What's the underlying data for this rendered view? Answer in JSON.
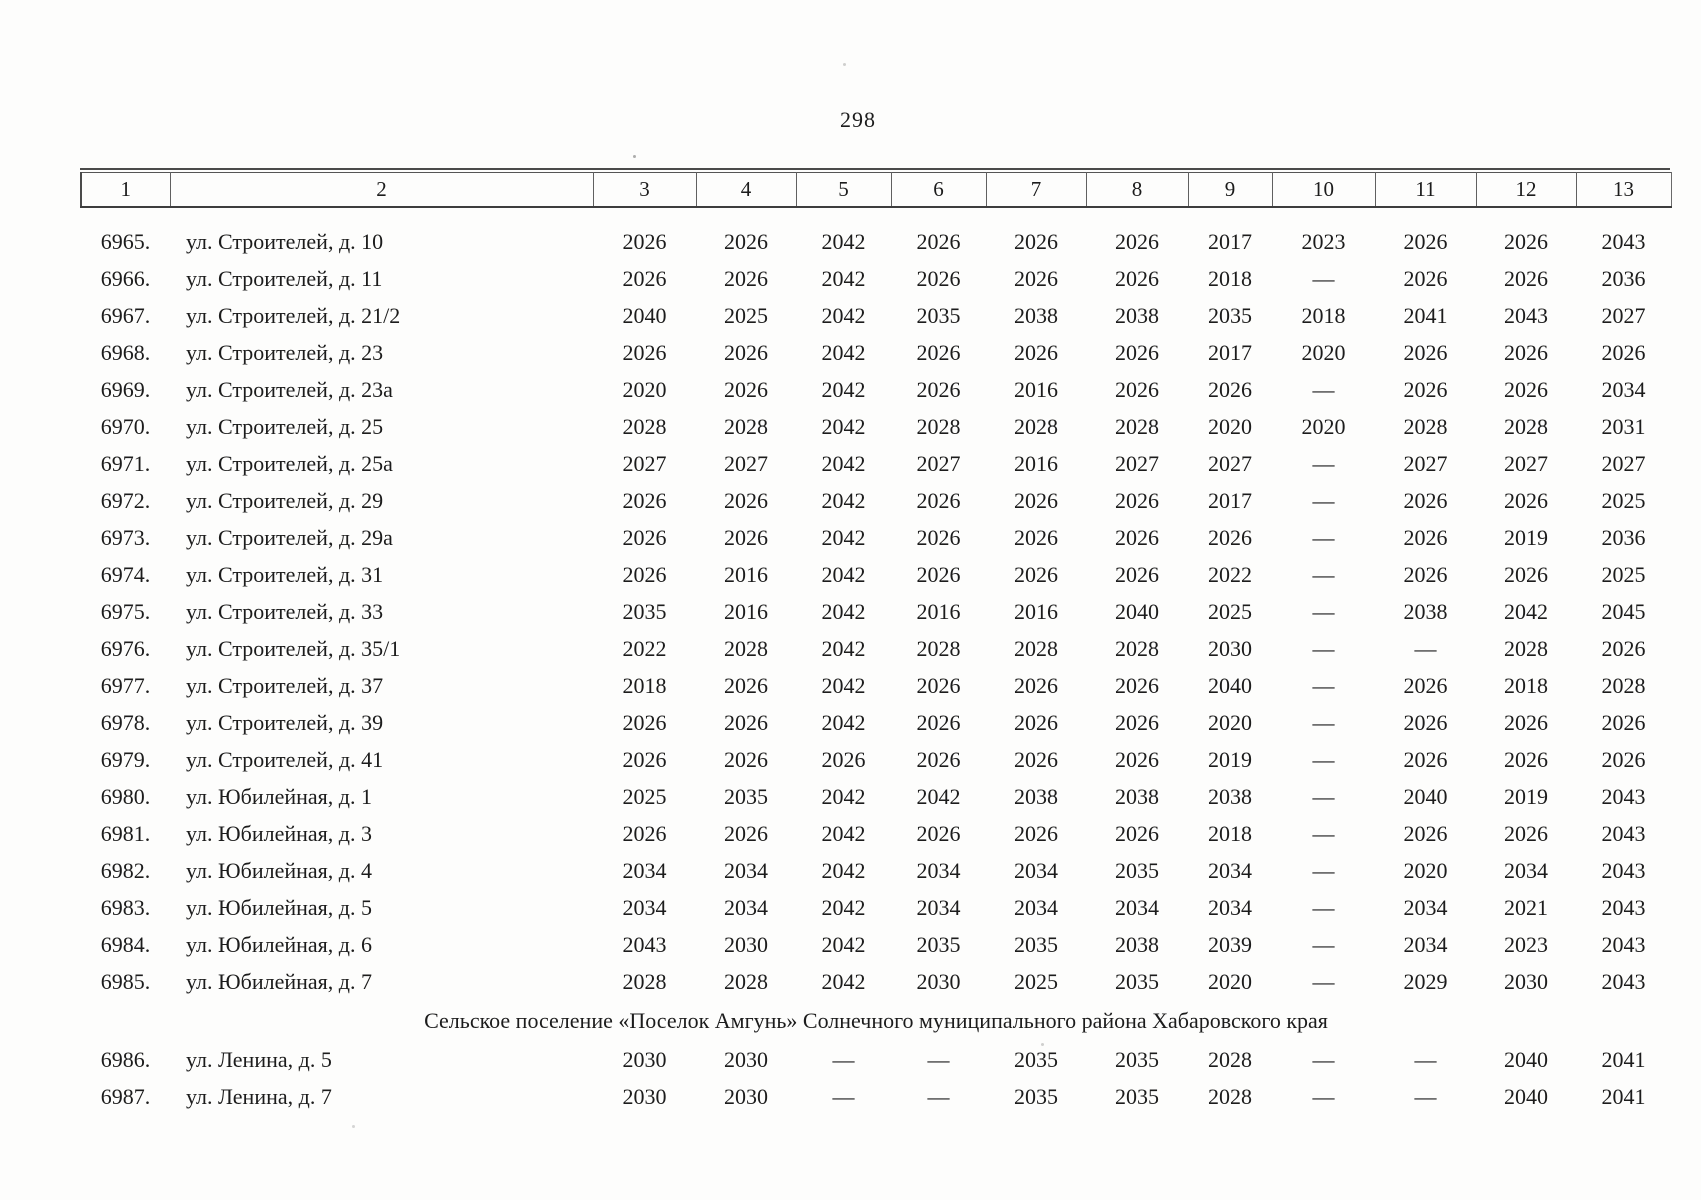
{
  "page": {
    "number": "298"
  },
  "table": {
    "columns": [
      "1",
      "2",
      "3",
      "4",
      "5",
      "6",
      "7",
      "8",
      "9",
      "10",
      "11",
      "12",
      "13"
    ],
    "rows": [
      {
        "num": "6965.",
        "address": "ул. Строителей, д. 10",
        "values": [
          "2026",
          "2026",
          "2042",
          "2026",
          "2026",
          "2026",
          "2017",
          "2023",
          "2026",
          "2026",
          "2043"
        ]
      },
      {
        "num": "6966.",
        "address": "ул. Строителей, д. 11",
        "values": [
          "2026",
          "2026",
          "2042",
          "2026",
          "2026",
          "2026",
          "2018",
          "—",
          "2026",
          "2026",
          "2036"
        ]
      },
      {
        "num": "6967.",
        "address": "ул. Строителей, д. 21/2",
        "values": [
          "2040",
          "2025",
          "2042",
          "2035",
          "2038",
          "2038",
          "2035",
          "2018",
          "2041",
          "2043",
          "2027"
        ]
      },
      {
        "num": "6968.",
        "address": "ул. Строителей, д. 23",
        "values": [
          "2026",
          "2026",
          "2042",
          "2026",
          "2026",
          "2026",
          "2017",
          "2020",
          "2026",
          "2026",
          "2026"
        ]
      },
      {
        "num": "6969.",
        "address": "ул. Строителей, д. 23а",
        "values": [
          "2020",
          "2026",
          "2042",
          "2026",
          "2016",
          "2026",
          "2026",
          "—",
          "2026",
          "2026",
          "2034"
        ]
      },
      {
        "num": "6970.",
        "address": "ул. Строителей, д. 25",
        "values": [
          "2028",
          "2028",
          "2042",
          "2028",
          "2028",
          "2028",
          "2020",
          "2020",
          "2028",
          "2028",
          "2031"
        ]
      },
      {
        "num": "6971.",
        "address": "ул. Строителей, д. 25а",
        "values": [
          "2027",
          "2027",
          "2042",
          "2027",
          "2016",
          "2027",
          "2027",
          "—",
          "2027",
          "2027",
          "2027"
        ]
      },
      {
        "num": "6972.",
        "address": "ул. Строителей, д. 29",
        "values": [
          "2026",
          "2026",
          "2042",
          "2026",
          "2026",
          "2026",
          "2017",
          "—",
          "2026",
          "2026",
          "2025"
        ]
      },
      {
        "num": "6973.",
        "address": "ул. Строителей, д. 29а",
        "values": [
          "2026",
          "2026",
          "2042",
          "2026",
          "2026",
          "2026",
          "2026",
          "—",
          "2026",
          "2019",
          "2036"
        ]
      },
      {
        "num": "6974.",
        "address": "ул. Строителей, д. 31",
        "values": [
          "2026",
          "2016",
          "2042",
          "2026",
          "2026",
          "2026",
          "2022",
          "—",
          "2026",
          "2026",
          "2025"
        ]
      },
      {
        "num": "6975.",
        "address": "ул. Строителей, д. 33",
        "values": [
          "2035",
          "2016",
          "2042",
          "2016",
          "2016",
          "2040",
          "2025",
          "—",
          "2038",
          "2042",
          "2045"
        ]
      },
      {
        "num": "6976.",
        "address": "ул. Строителей, д. 35/1",
        "values": [
          "2022",
          "2028",
          "2042",
          "2028",
          "2028",
          "2028",
          "2030",
          "—",
          "—",
          "2028",
          "2026"
        ]
      },
      {
        "num": "6977.",
        "address": "ул. Строителей, д. 37",
        "values": [
          "2018",
          "2026",
          "2042",
          "2026",
          "2026",
          "2026",
          "2040",
          "—",
          "2026",
          "2018",
          "2028"
        ]
      },
      {
        "num": "6978.",
        "address": "ул. Строителей, д. 39",
        "values": [
          "2026",
          "2026",
          "2042",
          "2026",
          "2026",
          "2026",
          "2020",
          "—",
          "2026",
          "2026",
          "2026"
        ]
      },
      {
        "num": "6979.",
        "address": "ул. Строителей, д. 41",
        "values": [
          "2026",
          "2026",
          "2026",
          "2026",
          "2026",
          "2026",
          "2019",
          "—",
          "2026",
          "2026",
          "2026"
        ]
      },
      {
        "num": "6980.",
        "address": "ул. Юбилейная, д. 1",
        "values": [
          "2025",
          "2035",
          "2042",
          "2042",
          "2038",
          "2038",
          "2038",
          "—",
          "2040",
          "2019",
          "2043"
        ]
      },
      {
        "num": "6981.",
        "address": "ул. Юбилейная, д. 3",
        "values": [
          "2026",
          "2026",
          "2042",
          "2026",
          "2026",
          "2026",
          "2018",
          "—",
          "2026",
          "2026",
          "2043"
        ]
      },
      {
        "num": "6982.",
        "address": "ул. Юбилейная, д. 4",
        "values": [
          "2034",
          "2034",
          "2042",
          "2034",
          "2034",
          "2035",
          "2034",
          "—",
          "2020",
          "2034",
          "2043"
        ]
      },
      {
        "num": "6983.",
        "address": "ул. Юбилейная, д. 5",
        "values": [
          "2034",
          "2034",
          "2042",
          "2034",
          "2034",
          "2034",
          "2034",
          "—",
          "2034",
          "2021",
          "2043"
        ]
      },
      {
        "num": "6984.",
        "address": "ул. Юбилейная, д. 6",
        "values": [
          "2043",
          "2030",
          "2042",
          "2035",
          "2035",
          "2038",
          "2039",
          "—",
          "2034",
          "2023",
          "2043"
        ]
      },
      {
        "num": "6985.",
        "address": "ул. Юбилейная, д. 7",
        "values": [
          "2028",
          "2028",
          "2042",
          "2030",
          "2025",
          "2035",
          "2020",
          "—",
          "2029",
          "2030",
          "2043"
        ]
      },
      {
        "section": "Сельское поселение «Поселок Амгунь» Солнечного муниципального района Хабаровского края"
      },
      {
        "num": "6986.",
        "address": "ул. Ленина, д. 5",
        "values": [
          "2030",
          "2030",
          "—",
          "—",
          "2035",
          "2035",
          "2028",
          "—",
          "—",
          "2040",
          "2041"
        ]
      },
      {
        "num": "6987.",
        "address": "ул. Ленина, д. 7",
        "values": [
          "2030",
          "2030",
          "—",
          "—",
          "2035",
          "2035",
          "2028",
          "—",
          "—",
          "2040",
          "2041"
        ]
      }
    ]
  }
}
